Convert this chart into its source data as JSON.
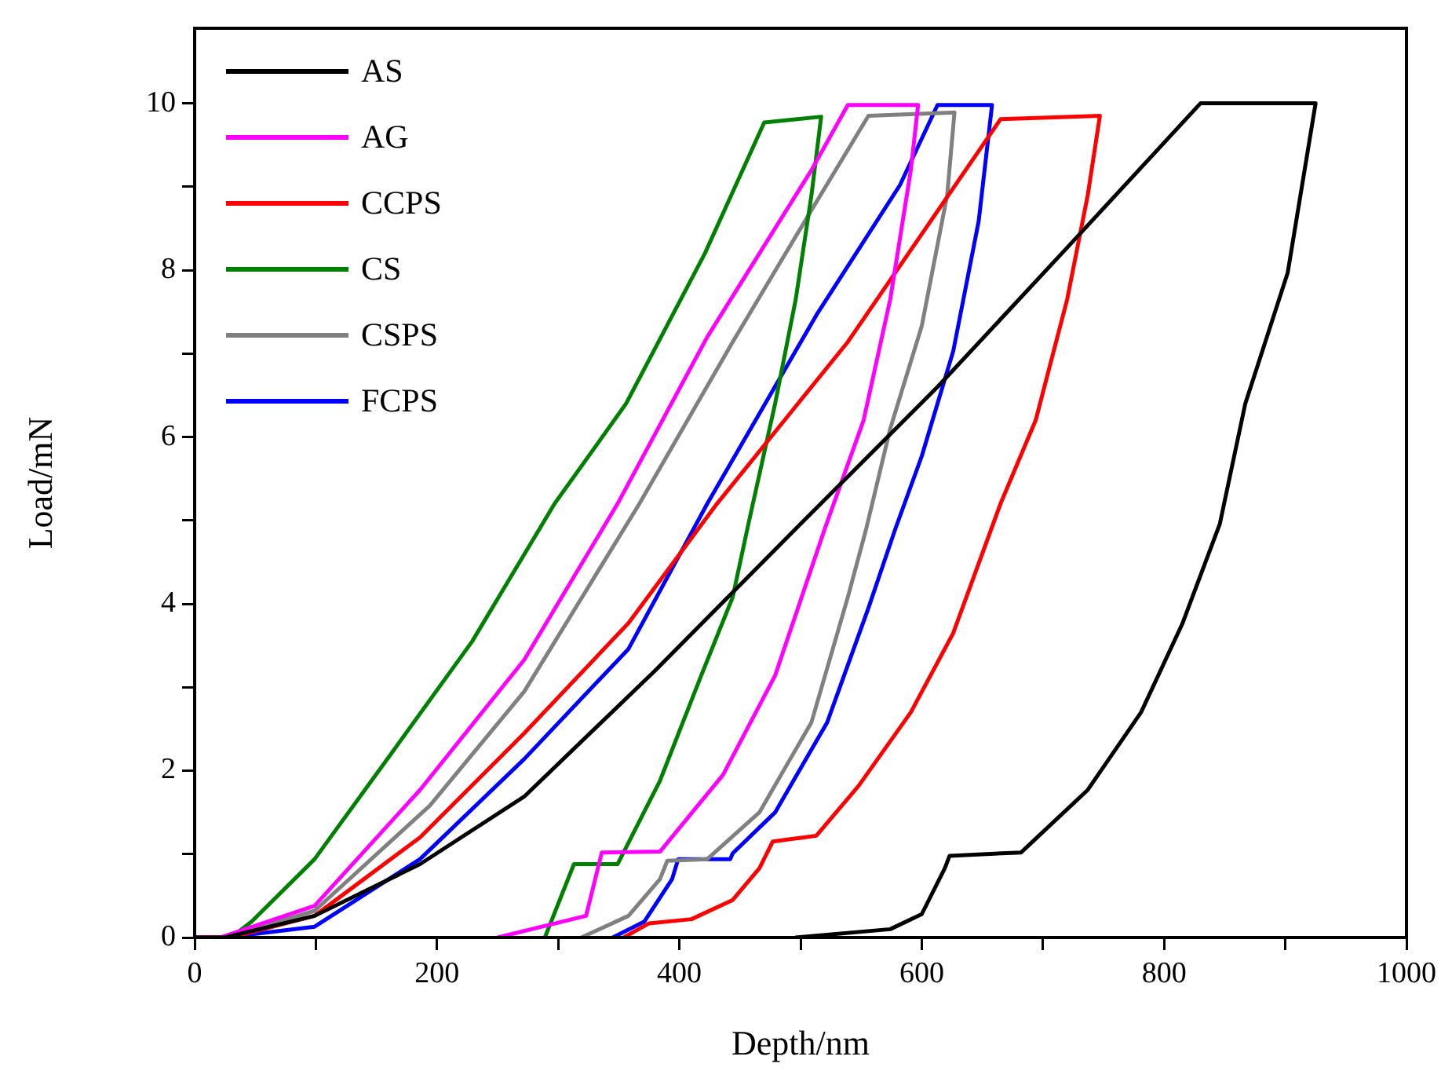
{
  "chart_data": {
    "type": "line",
    "xlabel": "Depth/nm",
    "ylabel": "Load/mN",
    "xlim": [
      0,
      1000
    ],
    "ylim": [
      0,
      10.9
    ],
    "xticks": [
      0,
      {
        "value": 100,
        "label": null
      },
      200,
      {
        "value": 300,
        "label": null
      },
      400,
      {
        "value": 500,
        "label": null
      },
      600,
      {
        "value": 700,
        "label": null
      },
      800,
      {
        "value": 900,
        "label": null
      },
      1000
    ],
    "yticks": [
      0,
      {
        "value": 1,
        "label": null
      },
      2,
      {
        "value": 3,
        "label": null
      },
      4,
      {
        "value": 5,
        "label": null
      },
      6,
      {
        "value": 7,
        "label": null
      },
      8,
      {
        "value": 9,
        "label": null
      },
      10
    ],
    "grid": false,
    "legend": "top left",
    "marker": "none",
    "line_style": "solid",
    "series": [
      {
        "name": "AS",
        "color": "#000000",
        "x": [
          0,
          25,
          99,
          186,
          272,
          380,
          496,
          613,
          720,
          830,
          925,
          902,
          867,
          846,
          815,
          781,
          737,
          682,
          623,
          619,
          600,
          574,
          496
        ],
        "values": [
          0,
          0,
          0.26,
          0.88,
          1.69,
          3.2,
          4.9,
          6.6,
          8.27,
          10.0,
          10.0,
          7.97,
          6.4,
          4.96,
          3.76,
          2.7,
          1.77,
          1.02,
          0.98,
          0.83,
          0.28,
          0.1,
          0
        ]
      },
      {
        "name": "AG",
        "color": "#ff00ff",
        "x": [
          0,
          21,
          99,
          186,
          272,
          349,
          423,
          509,
          539,
          597,
          591,
          574,
          552,
          520,
          479,
          436,
          384,
          336,
          323,
          250
        ],
        "values": [
          0,
          0,
          0.38,
          1.77,
          3.33,
          5.2,
          7.2,
          9.2,
          9.98,
          9.98,
          9.2,
          7.65,
          6.2,
          4.9,
          3.14,
          1.95,
          1.03,
          1.02,
          0.26,
          0
        ]
      },
      {
        "name": "CCPS",
        "color": "#ff0000",
        "x": [
          0,
          30,
          99,
          186,
          272,
          358,
          431,
          539,
          665,
          747,
          737,
          720,
          694,
          665,
          626,
          591,
          548,
          513,
          477,
          466,
          444,
          410,
          375,
          354
        ],
        "values": [
          0,
          0,
          0.26,
          1.2,
          2.45,
          3.77,
          5.2,
          7.14,
          9.81,
          9.85,
          8.9,
          7.65,
          6.2,
          5.2,
          3.65,
          2.7,
          1.82,
          1.22,
          1.15,
          0.83,
          0.45,
          0.22,
          0.17,
          0
        ]
      },
      {
        "name": "CS",
        "color": "#008000",
        "x": [
          0,
          30,
          47,
          99,
          162,
          229,
          297,
          356,
          421,
          470,
          517,
          509,
          496,
          479,
          457,
          444,
          418,
          384,
          349,
          313,
          289
        ],
        "values": [
          0,
          0,
          0.19,
          0.94,
          2.2,
          3.55,
          5.2,
          6.4,
          8.2,
          9.77,
          9.84,
          8.9,
          7.65,
          6.4,
          4.96,
          4.08,
          3.14,
          1.88,
          0.88,
          0.88,
          0
        ]
      },
      {
        "name": "CSPS",
        "color": "#808080",
        "x": [
          0,
          25,
          99,
          194,
          272,
          367,
          444,
          509,
          556,
          627,
          621,
          600,
          574,
          554,
          539,
          509,
          466,
          423,
          390,
          384,
          358,
          319
        ],
        "values": [
          0,
          0,
          0.32,
          1.58,
          2.95,
          5.2,
          7.14,
          8.72,
          9.85,
          9.89,
          8.9,
          7.33,
          6.1,
          4.89,
          4.08,
          2.58,
          1.5,
          0.94,
          0.92,
          0.7,
          0.26,
          0
        ]
      },
      {
        "name": "FCPS",
        "color": "#0000ff",
        "x": [
          0,
          25,
          99,
          186,
          272,
          358,
          423,
          513,
          582,
          613,
          658,
          647,
          626,
          600,
          578,
          556,
          522,
          479,
          444,
          442,
          399,
          394,
          371,
          345
        ],
        "values": [
          0,
          0,
          0.13,
          0.94,
          2.14,
          3.46,
          5.2,
          7.46,
          9.02,
          9.98,
          9.98,
          8.59,
          7.03,
          5.77,
          4.89,
          3.95,
          2.58,
          1.5,
          1.01,
          0.94,
          0.94,
          0.7,
          0.19,
          0
        ]
      }
    ]
  }
}
